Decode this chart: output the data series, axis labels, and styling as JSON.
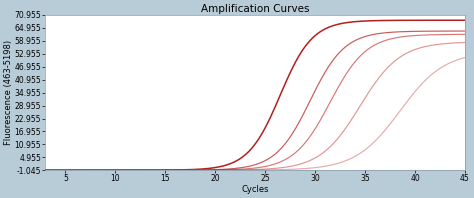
{
  "title": "Amplification Curves",
  "xlabel": "Cycles",
  "ylabel": "Fluorescence (463-5198)",
  "xlim": [
    3,
    45
  ],
  "ylim": [
    -1.045,
    70.955
  ],
  "xticks": [
    5,
    10,
    15,
    20,
    25,
    30,
    35,
    40,
    45
  ],
  "yticks": [
    -1.045,
    4.955,
    10.955,
    16.955,
    22.955,
    28.955,
    34.955,
    40.955,
    46.955,
    52.955,
    58.955,
    64.955,
    70.955
  ],
  "ytick_labels": [
    "-1.045",
    "4.955",
    "10.955",
    "16.955",
    "22.955",
    "28.955",
    "34.955",
    "40.955",
    "46.955",
    "52.955",
    "58.955",
    "64.955",
    "70.955"
  ],
  "background_color": "#b8ccd8",
  "plot_bg_color": "#ffffff",
  "title_fontsize": 7.5,
  "axis_fontsize": 6,
  "tick_fontsize": 5.5,
  "curves": [
    {
      "midpoint": 26.5,
      "ymax": 68.5,
      "k": 0.62,
      "color": "#b22020",
      "lw": 1.1,
      "alpha": 1.0
    },
    {
      "midpoint": 29.5,
      "ymax": 63.5,
      "k": 0.58,
      "color": "#c03030",
      "lw": 0.85,
      "alpha": 0.8
    },
    {
      "midpoint": 31.5,
      "ymax": 62.0,
      "k": 0.55,
      "color": "#c03030",
      "lw": 0.85,
      "alpha": 0.65
    },
    {
      "midpoint": 34.5,
      "ymax": 58.5,
      "k": 0.5,
      "color": "#c03030",
      "lw": 0.85,
      "alpha": 0.5
    },
    {
      "midpoint": 38.5,
      "ymax": 54.0,
      "k": 0.45,
      "color": "#c03030",
      "lw": 0.85,
      "alpha": 0.4
    }
  ],
  "baseline_color": "#22aa44",
  "baseline_y": -0.7,
  "baseline_lw": 0.7,
  "baseline_alpha": 0.85,
  "noise_color": "#b22020",
  "noise_y": -0.7,
  "noise_lw": 0.6,
  "noise_alpha": 0.6
}
